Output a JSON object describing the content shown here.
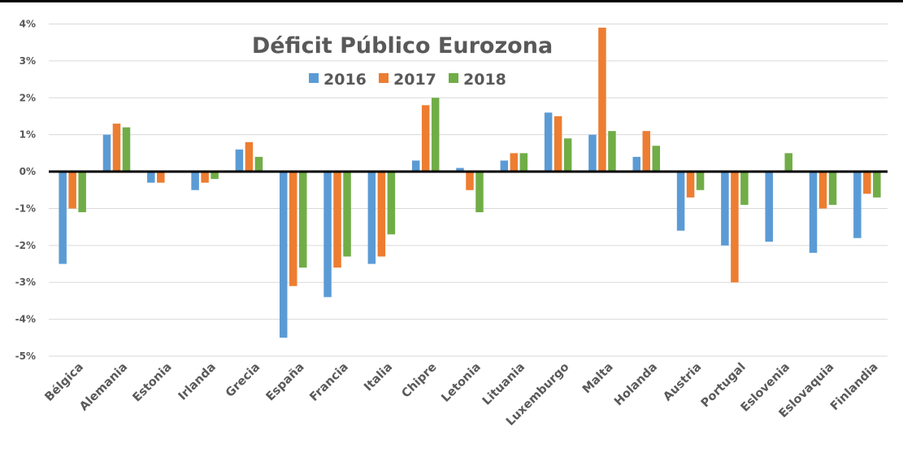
{
  "chart_data": {
    "type": "bar",
    "title": "Déficit Público Eurozona",
    "xlabel": "",
    "ylabel": "",
    "ylim": [
      -5,
      4
    ],
    "yticks": [
      4,
      3,
      2,
      1,
      0,
      -1,
      -2,
      -3,
      -4,
      -5
    ],
    "ytick_labels": [
      "4%",
      "3%",
      "2%",
      "1%",
      "0%",
      "-1%",
      "-2%",
      "-3%",
      "-4%",
      "-5%"
    ],
    "grid": true,
    "legend_position": "top-center",
    "categories": [
      "Bélgica",
      "Alemania",
      "Estonia",
      "Irlanda",
      "Grecia",
      "España",
      "Francia",
      "Italia",
      "Chipre",
      "Letonia",
      "Lituania",
      "Luxemburgo",
      "Malta",
      "Holanda",
      "Austria",
      "Portugal",
      "Eslovenia",
      "Eslovaquia",
      "Finlandia"
    ],
    "series": [
      {
        "name": "2016",
        "color": "#5B9BD5",
        "values": [
          -2.5,
          1.0,
          -0.3,
          -0.5,
          0.6,
          -4.5,
          -3.4,
          -2.5,
          0.3,
          0.1,
          0.3,
          1.6,
          1.0,
          0.4,
          -1.6,
          -2.0,
          -1.9,
          -2.2,
          -1.8
        ]
      },
      {
        "name": "2017",
        "color": "#ED7D31",
        "values": [
          -1.0,
          1.3,
          -0.3,
          -0.3,
          0.8,
          -3.1,
          -2.6,
          -2.3,
          1.8,
          -0.5,
          0.5,
          1.5,
          3.9,
          1.1,
          -0.7,
          -3.0,
          0.0,
          -1.0,
          -0.6
        ]
      },
      {
        "name": "2018",
        "color": "#70AD47",
        "values": [
          -1.1,
          1.2,
          0.0,
          -0.2,
          0.4,
          -2.6,
          -2.3,
          -1.7,
          2.0,
          -1.1,
          0.5,
          0.9,
          1.1,
          0.7,
          -0.5,
          -0.9,
          0.5,
          -0.9,
          -0.7
        ]
      }
    ]
  }
}
